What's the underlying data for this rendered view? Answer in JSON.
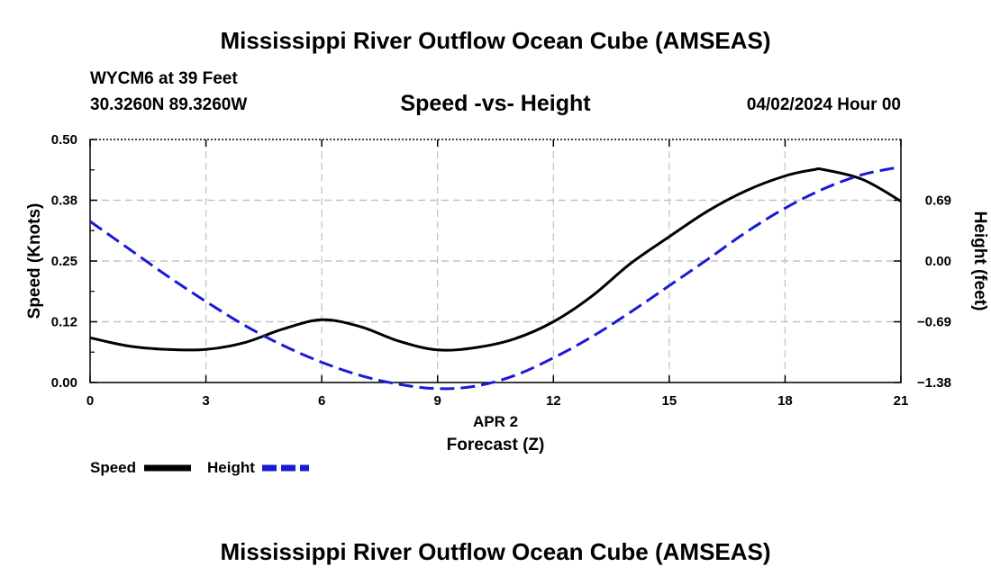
{
  "header": {
    "title": "Mississippi River Outflow Ocean Cube (AMSEAS)",
    "station": "WYCM6 at 39 Feet",
    "coords": "30.3260N  89.3260W",
    "chart_title": "Speed -vs- Height",
    "datetime": "04/02/2024 Hour 00"
  },
  "footer": {
    "title": "Mississippi River Outflow Ocean Cube (AMSEAS)"
  },
  "colors": {
    "speed": "#000000",
    "height": "#1a1ad6",
    "grid": "#c0c0c0"
  },
  "chart_data": {
    "type": "line",
    "title": "Speed -vs- Height",
    "xlabel": "Forecast (Z)",
    "xlabel_date": "APR 2",
    "ylabel": "Speed (Knots)",
    "y2label": "Height (feet)",
    "xlim": [
      0,
      21
    ],
    "ylim": [
      0,
      0.5
    ],
    "y2lim": [
      -1.38,
      1.38
    ],
    "x_ticks": [
      0,
      3,
      6,
      9,
      12,
      15,
      18,
      21
    ],
    "x_tick_labels": [
      "0",
      "3",
      "6",
      "9",
      "12",
      "15",
      "18",
      "21"
    ],
    "y_ticks": [
      0,
      0.125,
      0.25,
      0.375,
      0.5
    ],
    "y_tick_labels": [
      "0.00",
      "0.12",
      "0.25",
      "0.38",
      "0.50"
    ],
    "y2_ticks": [
      -1.38,
      -0.69,
      0,
      0.69
    ],
    "y2_tick_labels": [
      "−1.38",
      "−0.69",
      "0.00",
      "0.69"
    ],
    "grid": true,
    "legend": [
      {
        "name": "Speed",
        "style": "solid",
        "color": "#000000"
      },
      {
        "name": "Height",
        "style": "dashed",
        "color": "#1a1ad6"
      }
    ],
    "series": [
      {
        "name": "Speed",
        "axis": "left",
        "x": [
          0,
          1,
          2,
          3,
          4,
          5,
          6,
          7,
          8,
          9,
          10,
          11,
          12,
          13,
          14,
          15,
          16,
          17,
          18,
          18.75,
          19,
          20,
          21
        ],
        "values": [
          0.092,
          0.075,
          0.068,
          0.068,
          0.082,
          0.11,
          0.129,
          0.115,
          0.085,
          0.067,
          0.072,
          0.09,
          0.125,
          0.178,
          0.245,
          0.3,
          0.353,
          0.395,
          0.425,
          0.438,
          0.438,
          0.418,
          0.373
        ]
      },
      {
        "name": "Height",
        "axis": "right",
        "x": [
          0,
          1,
          2,
          3,
          4,
          5,
          6,
          7,
          8,
          9,
          10,
          11,
          12,
          13,
          14,
          15,
          16,
          17,
          18,
          19,
          20,
          21
        ],
        "values": [
          0.45,
          0.14,
          -0.17,
          -0.46,
          -0.73,
          -0.96,
          -1.15,
          -1.3,
          -1.4,
          -1.45,
          -1.42,
          -1.3,
          -1.1,
          -0.86,
          -0.58,
          -0.28,
          0.02,
          0.33,
          0.6,
          0.82,
          0.98,
          1.07
        ]
      }
    ]
  }
}
